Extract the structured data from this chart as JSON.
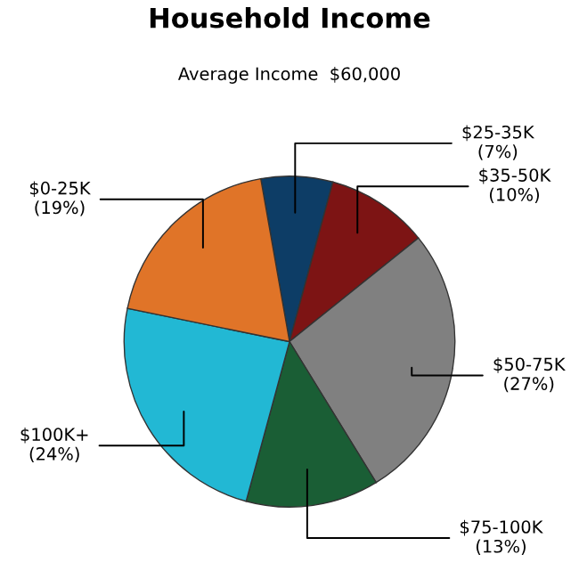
{
  "chart_data": {
    "type": "pie",
    "title": "Household Income",
    "subtitle": "Average Income  $60,000",
    "categories": [
      "$25-35K",
      "$35-50K",
      "$50-75K",
      "$75-100K",
      "$100K+",
      "$0-25K"
    ],
    "values": [
      7,
      10,
      27,
      13,
      24,
      19
    ],
    "value_labels": [
      "(7%)",
      "(10%)",
      "(27%)",
      "(13%)",
      "(24%)",
      "(19%)"
    ],
    "colors": [
      "#0d3d66",
      "#7d1414",
      "#808080",
      "#1a5e35",
      "#22b8d4",
      "#e07428"
    ],
    "legend": false
  }
}
